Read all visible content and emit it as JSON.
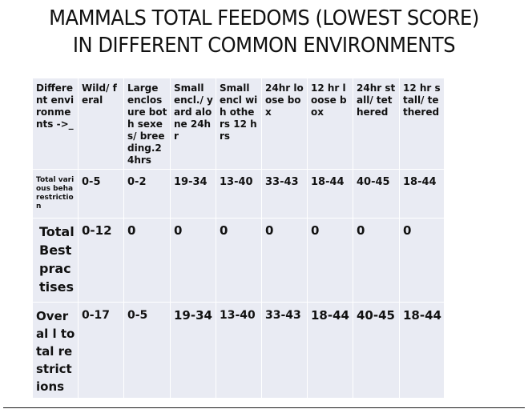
{
  "title": {
    "line1": "MAMMALS TOTAL FEEDOMS (LOWEST SCORE)",
    "line2": "IN DIFFERENT COMMON ENVIRONMENTS"
  },
  "table": {
    "header": [
      "Different environments ->_",
      "Wild/ feral",
      "Large enclosure both sexes/ breeding.24hrs",
      "Small encl./ yard alone 24hr",
      "Small encl wih others 12 hrs",
      "24hr loose box",
      "12 hr loose box",
      "24hr stall/ tethered",
      "12 hr stall/ tethered"
    ],
    "rows": [
      {
        "label": "Total various beha restriction",
        "values": [
          "0-5",
          "0-2",
          "19-34",
          "13-40",
          "33-43",
          "18-44",
          "40-45",
          "18-44"
        ]
      },
      {
        "label": "Total Best practises",
        "values": [
          "0-12",
          "0",
          "0",
          "0",
          "0",
          "0",
          "0",
          "0"
        ]
      },
      {
        "label": "Overal l total restrictions",
        "values": [
          "0-17",
          "0-5",
          "19-34",
          "13-40",
          "33-43",
          "18-44",
          "40-45",
          "18-44"
        ]
      }
    ]
  }
}
